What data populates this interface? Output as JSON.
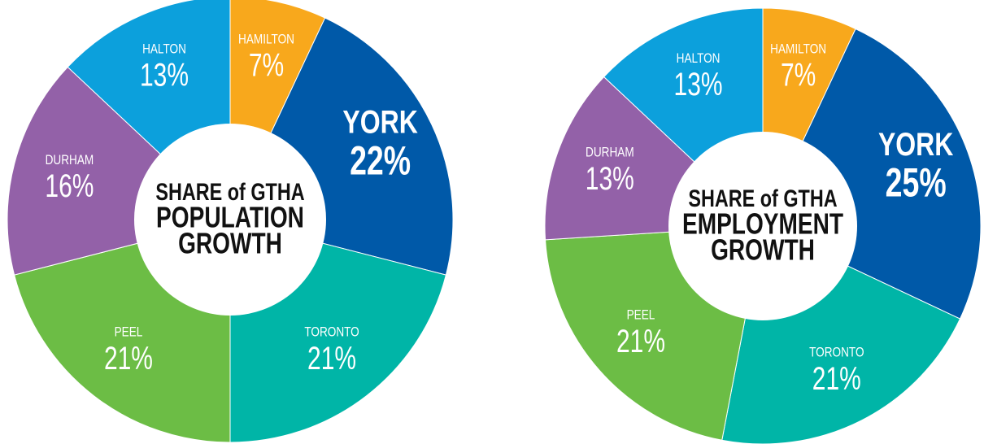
{
  "chart_data": [
    {
      "type": "pie",
      "title": [
        "SHARE of GTHA",
        "POPULATION",
        "GROWTH"
      ],
      "categories": [
        "HAMILTON",
        "YORK",
        "TORONTO",
        "PEEL",
        "DURHAM",
        "HALTON"
      ],
      "values": [
        7,
        22,
        21,
        21,
        16,
        13
      ],
      "value_labels": [
        "7%",
        "22%",
        "21%",
        "21%",
        "16%",
        "13%"
      ],
      "colors": [
        "#f8a81c",
        "#0059a8",
        "#00b5a7",
        "#6cbd45",
        "#9361a8",
        "#0ca0dc"
      ]
    },
    {
      "type": "pie",
      "title": [
        "SHARE of GTHA",
        "EMPLOYMENT",
        "GROWTH"
      ],
      "categories": [
        "HAMILTON",
        "YORK",
        "TORONTO",
        "PEEL",
        "DURHAM",
        "HALTON"
      ],
      "values": [
        7,
        25,
        21,
        21,
        13,
        13
      ],
      "value_labels": [
        "7%",
        "25%",
        "21%",
        "21%",
        "13%",
        "13%"
      ],
      "colors": [
        "#f8a81c",
        "#0059a8",
        "#00b5a7",
        "#6cbd45",
        "#9361a8",
        "#0ca0dc"
      ]
    }
  ]
}
